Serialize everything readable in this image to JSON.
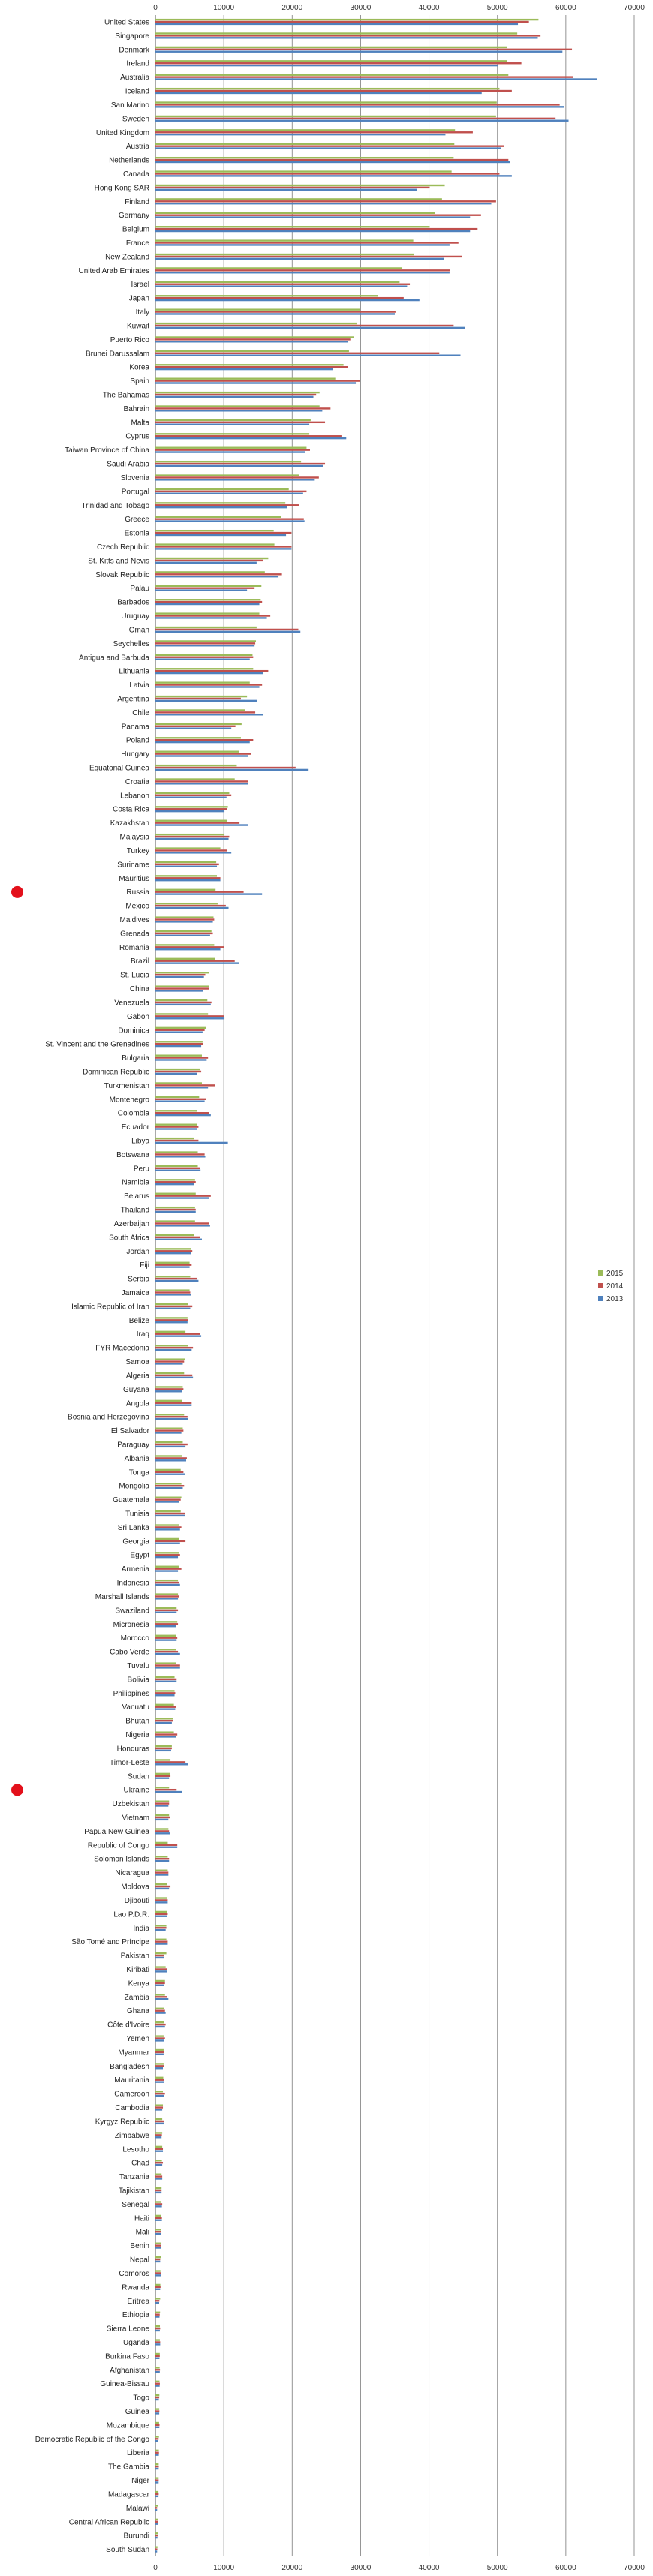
{
  "chart_data": {
    "type": "bar",
    "orientation": "horizontal",
    "title": "",
    "xlabel": "",
    "ylabel": "",
    "xlim": [
      0,
      70000
    ],
    "x_ticks": [
      0,
      10000,
      20000,
      30000,
      40000,
      50000,
      60000,
      70000
    ],
    "grid": true,
    "legend_position": "right",
    "colors": {
      "2015": "#9BBB59",
      "2014": "#C0504D",
      "2013": "#4F81BD",
      "grid": "#888888",
      "marker": "#E3101B"
    },
    "series": [
      {
        "name": "2015",
        "color": "#9BBB59"
      },
      {
        "name": "2014",
        "color": "#C0504D"
      },
      {
        "name": "2013",
        "color": "#4F81BD"
      }
    ],
    "highlighted_categories": [
      "Russia",
      "Ukraine"
    ],
    "categories": [
      "United States",
      "Singapore",
      "Denmark",
      "Ireland",
      "Australia",
      "Iceland",
      "San Marino",
      "Sweden",
      "United Kingdom",
      "Austria",
      "Netherlands",
      "Canada",
      "Hong Kong SAR",
      "Finland",
      "Germany",
      "Belgium",
      "France",
      "New Zealand",
      "United Arab Emirates",
      "Israel",
      "Japan",
      "Italy",
      "Kuwait",
      "Puerto Rico",
      "Brunei Darussalam",
      "Korea",
      "Spain",
      "The Bahamas",
      "Bahrain",
      "Malta",
      "Cyprus",
      "Taiwan Province of China",
      "Saudi Arabia",
      "Slovenia",
      "Portugal",
      "Trinidad and Tobago",
      "Greece",
      "Estonia",
      "Czech Republic",
      "St. Kitts and Nevis",
      "Slovak Republic",
      "Palau",
      "Barbados",
      "Uruguay",
      "Oman",
      "Seychelles",
      "Antigua and Barbuda",
      "Lithuania",
      "Latvia",
      "Argentina",
      "Chile",
      "Panama",
      "Poland",
      "Hungary",
      "Equatorial Guinea",
      "Croatia",
      "Lebanon",
      "Costa Rica",
      "Kazakhstan",
      "Malaysia",
      "Turkey",
      "Suriname",
      "Mauritius",
      "Russia",
      "Mexico",
      "Maldives",
      "Grenada",
      "Romania",
      "Brazil",
      "St. Lucia",
      "China",
      "Venezuela",
      "Gabon",
      "Dominica",
      "St. Vincent and the Grenadines",
      "Bulgaria",
      "Dominican Republic",
      "Turkmenistan",
      "Montenegro",
      "Colombia",
      "Ecuador",
      "Libya",
      "Botswana",
      "Peru",
      "Namibia",
      "Belarus",
      "Thailand",
      "Azerbaijan",
      "South Africa",
      "Jordan",
      "Fiji",
      "Serbia",
      "Jamaica",
      "Islamic Republic of Iran",
      "Belize",
      "Iraq",
      "FYR Macedonia",
      "Samoa",
      "Algeria",
      "Guyana",
      "Angola",
      "Bosnia and Herzegovina",
      "El Salvador",
      "Paraguay",
      "Albania",
      "Tonga",
      "Mongolia",
      "Guatemala",
      "Tunisia",
      "Sri Lanka",
      "Georgia",
      "Egypt",
      "Armenia",
      "Indonesia",
      "Marshall Islands",
      "Swaziland",
      "Micronesia",
      "Morocco",
      "Cabo Verde",
      "Tuvalu",
      "Bolivia",
      "Philippines",
      "Vanuatu",
      "Bhutan",
      "Nigeria",
      "Honduras",
      "Timor-Leste",
      "Sudan",
      "Ukraine",
      "Uzbekistan",
      "Vietnam",
      "Papua New Guinea",
      "Republic of Congo",
      "Solomon Islands",
      "Nicaragua",
      "Moldova",
      "Djibouti",
      "Lao P.D.R.",
      "India",
      "São Tomé and Príncipe",
      "Pakistan",
      "Kiribati",
      "Kenya",
      "Zambia",
      "Ghana",
      "Côte d'Ivoire",
      "Yemen",
      "Myanmar",
      "Bangladesh",
      "Mauritania",
      "Cameroon",
      "Cambodia",
      "Kyrgyz Republic",
      "Zimbabwe",
      "Lesotho",
      "Chad",
      "Tanzania",
      "Tajikistan",
      "Senegal",
      "Haiti",
      "Mali",
      "Benin",
      "Nepal",
      "Comoros",
      "Rwanda",
      "Eritrea",
      "Ethiopia",
      "Sierra Leone",
      "Uganda",
      "Burkina Faso",
      "Afghanistan",
      "Guinea-Bissau",
      "Togo",
      "Guinea",
      "Mozambique",
      "Democratic Republic of the Congo",
      "Liberia",
      "The Gambia",
      "Niger",
      "Madagascar",
      "Malawi",
      "Central African Republic",
      "Burundi",
      "South Sudan"
    ],
    "values": {
      "2015": [
        56000,
        52900,
        51400,
        51400,
        51600,
        50300,
        49900,
        49800,
        43800,
        43700,
        43600,
        43300,
        42300,
        41900,
        40900,
        40100,
        37700,
        37800,
        36100,
        35700,
        32500,
        29900,
        29400,
        29000,
        28300,
        27500,
        26300,
        24000,
        24000,
        22700,
        22500,
        22100,
        21300,
        21000,
        19500,
        19000,
        18400,
        17300,
        17400,
        16500,
        16000,
        15500,
        15400,
        15200,
        14800,
        14700,
        14200,
        14300,
        13800,
        13400,
        13100,
        12600,
        12500,
        12200,
        11900,
        11600,
        10800,
        10600,
        10500,
        10100,
        9500,
        8900,
        9000,
        8800,
        9100,
        8500,
        8200,
        8600,
        8700,
        7900,
        7800,
        7600,
        7700,
        7400,
        6900,
        6800,
        6500,
        6800,
        6400,
        6100,
        6100,
        5600,
        6200,
        6200,
        5800,
        5900,
        5800,
        5800,
        5700,
        5200,
        5000,
        5100,
        5000,
        4800,
        4700,
        4400,
        4800,
        4300,
        4200,
        4000,
        3900,
        4200,
        4000,
        4000,
        3900,
        3700,
        3800,
        3800,
        3700,
        3500,
        3500,
        3400,
        3400,
        3300,
        3300,
        3100,
        3200,
        3000,
        3000,
        3000,
        2800,
        2800,
        2700,
        2600,
        2700,
        2400,
        2200,
        2100,
        2000,
        2000,
        2000,
        1900,
        1800,
        1800,
        1800,
        1700,
        1700,
        1700,
        1600,
        1600,
        1600,
        1500,
        1400,
        1400,
        1300,
        1300,
        1200,
        1200,
        1200,
        1150,
        1100,
        1100,
        1000,
        1000,
        1000,
        950,
        900,
        900,
        880,
        850,
        830,
        800,
        780,
        740,
        720,
        700,
        680,
        660,
        650,
        640,
        620,
        600,
        580,
        560,
        540,
        520,
        500,
        480,
        470,
        450,
        420,
        400,
        330,
        300
      ],
      "2014": [
        54600,
        56300,
        60900,
        53500,
        61100,
        52100,
        59100,
        58500,
        46400,
        51000,
        51600,
        50300,
        40100,
        49800,
        47600,
        47100,
        44300,
        44800,
        43100,
        37200,
        36300,
        35100,
        43600,
        28500,
        41500,
        28100,
        29900,
        23500,
        25600,
        24800,
        27200,
        22600,
        24800,
        23900,
        22100,
        21000,
        21700,
        19900,
        19900,
        15800,
        18500,
        14500,
        15600,
        16800,
        20900,
        14600,
        14300,
        16500,
        15600,
        12500,
        14600,
        11700,
        14300,
        14000,
        20500,
        13500,
        11100,
        10500,
        12300,
        10800,
        10500,
        9300,
        9500,
        12900,
        10300,
        8600,
        8400,
        10000,
        11600,
        7300,
        7800,
        8200,
        10000,
        7200,
        7000,
        7700,
        6700,
        8700,
        7400,
        7900,
        6300,
        6300,
        7200,
        6500,
        5900,
        8100,
        5900,
        7800,
        6500,
        5400,
        5300,
        6100,
        5100,
        5400,
        4800,
        6500,
        5500,
        4200,
        5400,
        4100,
        5300,
        4700,
        4100,
        4700,
        4600,
        4100,
        4200,
        3700,
        4300,
        3800,
        4400,
        3600,
        3800,
        3500,
        3400,
        3300,
        3300,
        3200,
        3300,
        3600,
        3100,
        2900,
        3000,
        2600,
        3200,
        2400,
        4400,
        2200,
        3100,
        2000,
        2100,
        2000,
        3200,
        2000,
        1900,
        2200,
        1800,
        1800,
        1600,
        1800,
        1300,
        1700,
        1400,
        1700,
        1400,
        1500,
        1400,
        1250,
        1250,
        1300,
        1400,
        1100,
        1250,
        950,
        1100,
        1100,
        1000,
        900,
        1000,
        950,
        850,
        850,
        700,
        820,
        750,
        580,
        630,
        700,
        700,
        640,
        670,
        650,
        560,
        580,
        600,
        470,
        520,
        500,
        480,
        480,
        250,
        390,
        360,
        280,
        310,
        1100
      ],
      "2013": [
        53000,
        55900,
        59500,
        50100,
        64600,
        47700,
        59700,
        60400,
        42400,
        50500,
        51800,
        52100,
        38200,
        49100,
        46000,
        46000,
        43000,
        42200,
        43000,
        36800,
        38600,
        35000,
        45300,
        28200,
        44600,
        26000,
        29300,
        23100,
        24400,
        22500,
        27900,
        21900,
        24500,
        23300,
        21600,
        19200,
        21800,
        19100,
        19900,
        14800,
        18000,
        13400,
        15200,
        16300,
        21200,
        14500,
        13800,
        15700,
        15200,
        14900,
        15800,
        11100,
        13800,
        13500,
        22400,
        13600,
        10400,
        10100,
        13600,
        10700,
        11100,
        9000,
        9500,
        15600,
        10700,
        8400,
        8000,
        9500,
        12200,
        7100,
        7000,
        8100,
        10100,
        6900,
        6700,
        7500,
        6100,
        7700,
        7200,
        8100,
        6100,
        10600,
        7300,
        6600,
        5700,
        7800,
        5900,
        8000,
        6800,
        5200,
        5000,
        6300,
        5200,
        5100,
        4700,
        6700,
        5300,
        4000,
        5500,
        3900,
        5300,
        4800,
        3800,
        4400,
        4500,
        4300,
        4000,
        3500,
        4300,
        3600,
        3600,
        3300,
        3300,
        3600,
        3300,
        3100,
        3000,
        3100,
        3600,
        3600,
        3100,
        2800,
        2900,
        2400,
        3000,
        2300,
        4800,
        2000,
        3900,
        1900,
        1900,
        2100,
        3200,
        2000,
        1900,
        2000,
        1800,
        1700,
        1500,
        1800,
        1300,
        1700,
        1300,
        1900,
        1500,
        1400,
        1300,
        1200,
        1100,
        1300,
        1300,
        1000,
        1300,
        900,
        1100,
        1000,
        1000,
        900,
        950,
        950,
        820,
        800,
        700,
        800,
        700,
        550,
        600,
        650,
        700,
        600,
        640,
        620,
        500,
        560,
        580,
        400,
        500,
        480,
        470,
        450,
        250,
        380,
        300,
        250,
        300,
        1500
      ]
    }
  }
}
